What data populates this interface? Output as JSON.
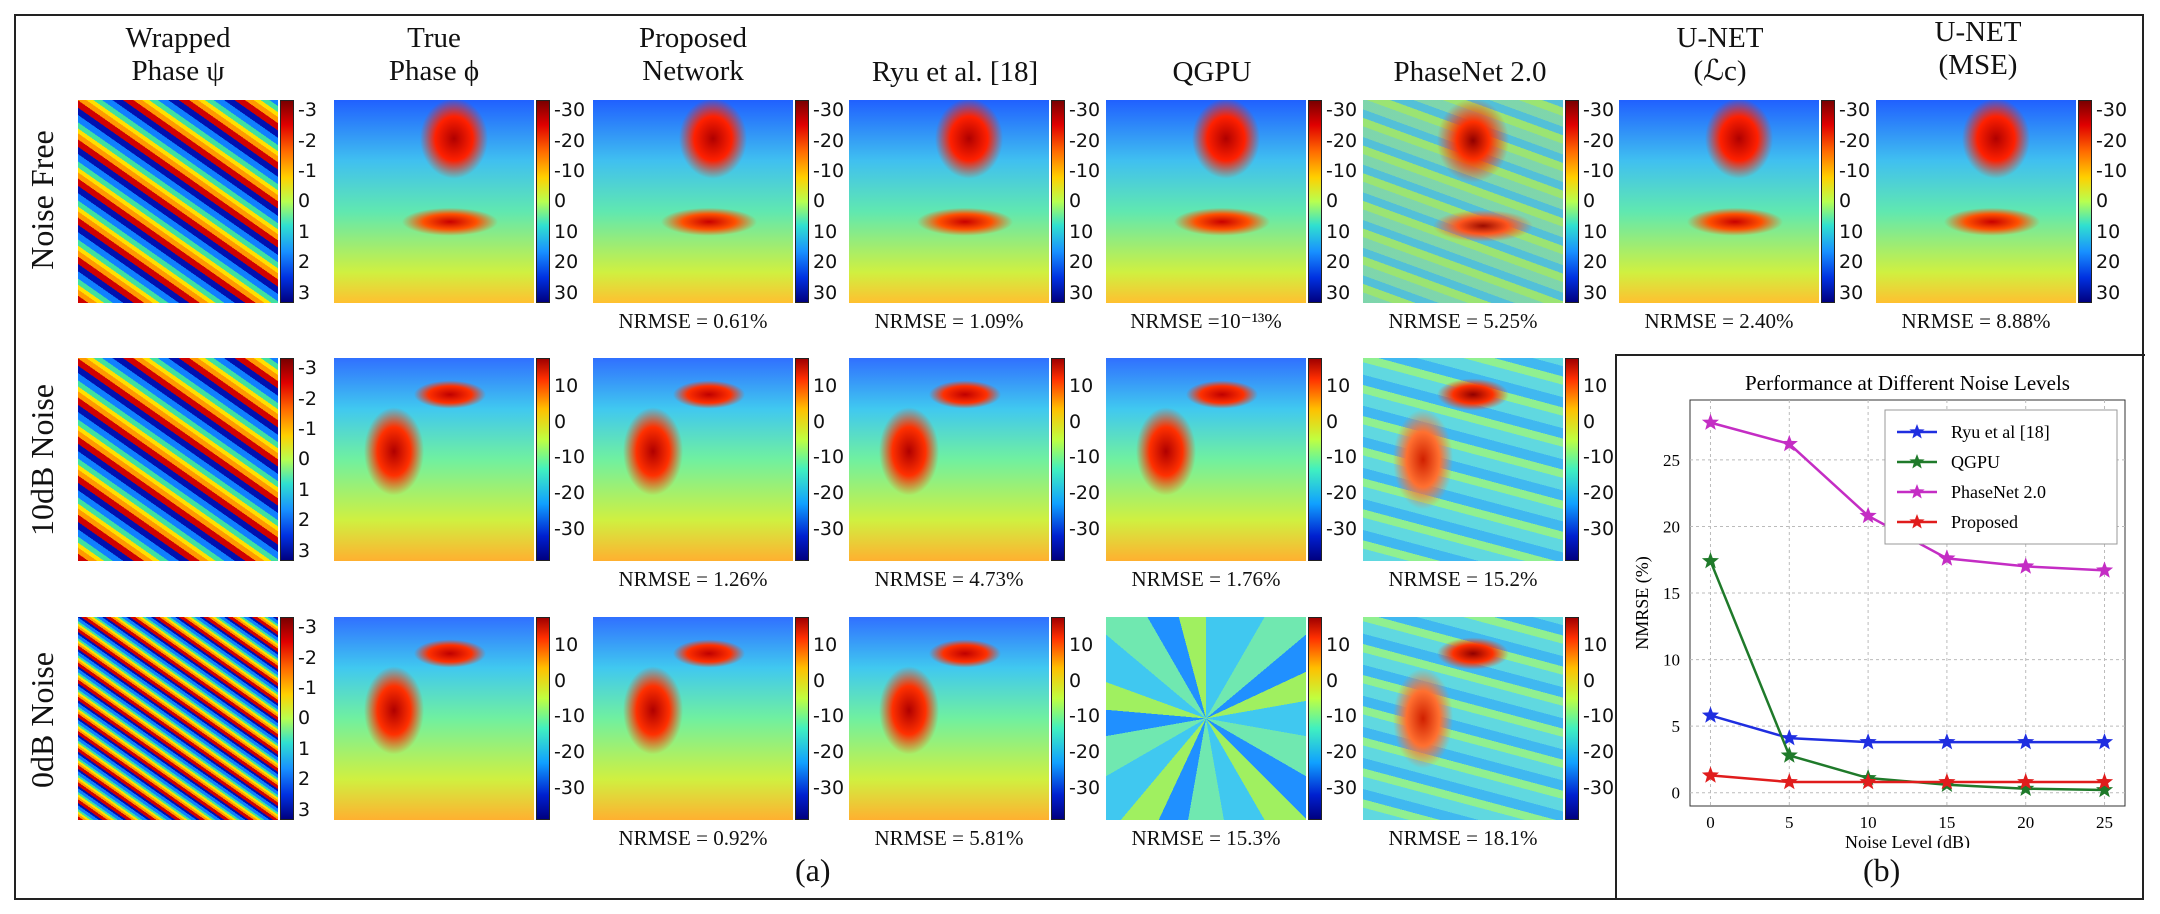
{
  "columns": [
    "Wrapped\nPhase ψ",
    "True\nPhase ϕ",
    "Proposed\nNetwork",
    "Ryu et al. [18]",
    "QGPU",
    "PhaseNet 2.0",
    "U-NET\n(ℒc)",
    "U-NET\n(MSE)"
  ],
  "rows": [
    "Noise Free",
    "10dB Noise",
    "0dB Noise"
  ],
  "colorbars": {
    "wrapped": [
      "-3",
      "-2",
      "-1",
      "0",
      "1",
      "2",
      "3"
    ],
    "noise_free": [
      "-30",
      "-20",
      "-10",
      "0",
      "10",
      "20",
      "30"
    ],
    "noisy": [
      "10",
      "0",
      "-10",
      "-20",
      "-30"
    ],
    "noisy_qgpu": [
      "10",
      "0",
      "-10",
      "-20",
      "-30"
    ]
  },
  "nrmse": {
    "row1": [
      "NRMSE = 0.61%",
      "NRMSE = 1.09%",
      "NRMSE =10⁻¹³%",
      "NRMSE = 5.25%",
      "NRMSE = 2.40%",
      "NRMSE = 8.88%"
    ],
    "row2": [
      "NRMSE = 1.26%",
      "NRMSE = 4.73%",
      "NRMSE = 1.76%",
      "NRMSE = 15.2%"
    ],
    "row3": [
      "NRMSE = 0.92%",
      "NRMSE = 5.81%",
      "NRMSE = 15.3%",
      "NRMSE = 18.1%"
    ]
  },
  "subcaptions": {
    "a": "(a)",
    "b": "(b)"
  },
  "chart_data": {
    "type": "line",
    "title": "Performance at Different Noise Levels",
    "xlabel": "Noise Level (dB)",
    "ylabel": "NMRSE (%)",
    "x": [
      0,
      5,
      10,
      15,
      20,
      25
    ],
    "xticks": [
      "0",
      "5",
      "10",
      "15",
      "20",
      "25"
    ],
    "yticks": [
      "0",
      "5",
      "10",
      "15",
      "20",
      "25"
    ],
    "xlim": [
      -1.3,
      26.3
    ],
    "ylim": [
      -1,
      29.5
    ],
    "grid": true,
    "legend_position": "top-right",
    "series": [
      {
        "name": "Ryu et al [18]",
        "color": "#1f2ee0",
        "values": [
          5.8,
          4.1,
          3.8,
          3.8,
          3.8,
          3.8
        ]
      },
      {
        "name": "QGPU",
        "color": "#1f7a2a",
        "values": [
          17.4,
          2.8,
          1.1,
          0.6,
          0.3,
          0.2
        ]
      },
      {
        "name": "PhaseNet 2.0",
        "color": "#c42dc4",
        "values": [
          27.8,
          26.2,
          20.8,
          17.6,
          17.0,
          16.7
        ]
      },
      {
        "name": "Proposed",
        "color": "#e01c1c",
        "values": [
          1.3,
          0.8,
          0.8,
          0.8,
          0.8,
          0.8
        ]
      }
    ]
  }
}
